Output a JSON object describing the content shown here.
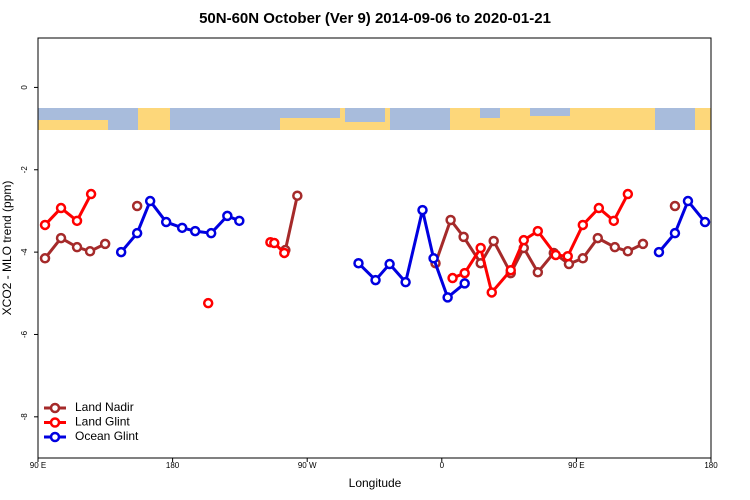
{
  "chart_data": {
    "type": "line",
    "title": "50N-60N October (Ver 9)   2014-09-06 to 2020-01-21",
    "x_label": "Longitude",
    "y_label": "XCO2 - MLO trend (ppm)",
    "xlim": [
      90,
      540
    ],
    "ylim": [
      -9,
      1.2
    ],
    "xticks": [
      {
        "value": 90,
        "label": "90 E"
      },
      180,
      {
        "value": 270,
        "label": "90 W"
      },
      {
        "value": 360,
        "label": "0"
      },
      {
        "value": 450,
        "label": "90 E"
      },
      {
        "value": 540,
        "label": "180"
      }
    ],
    "yticks": [
      0,
      -2,
      -4,
      -6,
      -8
    ],
    "legend": "bottom-left",
    "series": [
      {
        "name": "Land Nadir",
        "color": "#a52a2a",
        "x": [
          94.7,
          105.4,
          116.1,
          124.8,
          134.9,
          null,
          156.3,
          null,
          255.4,
          263.4,
          null,
          355.8,
          365.9,
          374.6,
          386,
          394.7,
          406.1,
          414.8,
          424.2,
          434.9,
          445,
          454.3,
          464.3,
          475.7,
          484.4,
          494.5,
          null,
          515.9
        ],
        "values": [
          -4.15,
          -3.66,
          -3.88,
          -3.98,
          -3.8,
          null,
          -2.88,
          null,
          -3.95,
          -2.63,
          null,
          -4.27,
          -3.22,
          -3.63,
          -4.27,
          -3.73,
          -4.51,
          -3.9,
          -4.49,
          -4.02,
          -4.29,
          -4.15,
          -3.66,
          -3.88,
          -3.98,
          -3.8,
          null,
          -2.88
        ]
      },
      {
        "name": "Land Glint",
        "color": "#ff0000",
        "x": [
          94.7,
          105.4,
          116.1,
          125.5,
          null,
          203.8,
          null,
          245.4,
          248,
          254.7,
          null,
          367.2,
          375.3,
          386,
          393.4,
          406.1,
          414.8,
          424.2,
          436.2,
          444.2,
          454.3,
          465,
          475,
          484.4
        ],
        "values": [
          -3.34,
          -2.93,
          -3.24,
          -2.59,
          null,
          -5.24,
          null,
          -3.76,
          -3.78,
          -4.02,
          null,
          -4.63,
          -4.51,
          -3.9,
          -4.98,
          -4.44,
          -3.71,
          -3.49,
          -4.07,
          -4.1,
          -3.34,
          -2.93,
          -3.24,
          -2.59
        ]
      },
      {
        "name": "Ocean Glint",
        "color": "#0000e0",
        "x": [
          145.6,
          156.3,
          165,
          175.7,
          186.4,
          195.1,
          205.8,
          216.6,
          224.6,
          null,
          304.3,
          315.7,
          325.1,
          335.8,
          347.1,
          354.5,
          363.9,
          375.3,
          null,
          505.2,
          515.9,
          524.6,
          536
        ],
        "values": [
          -4.0,
          -3.54,
          -2.76,
          -3.27,
          -3.41,
          -3.49,
          -3.54,
          -3.12,
          -3.24,
          null,
          -4.27,
          -4.68,
          -4.29,
          -4.73,
          -2.98,
          -4.15,
          -5.1,
          -4.76,
          null,
          -4.0,
          -3.54,
          -2.76,
          -3.27
        ]
      }
    ]
  }
}
